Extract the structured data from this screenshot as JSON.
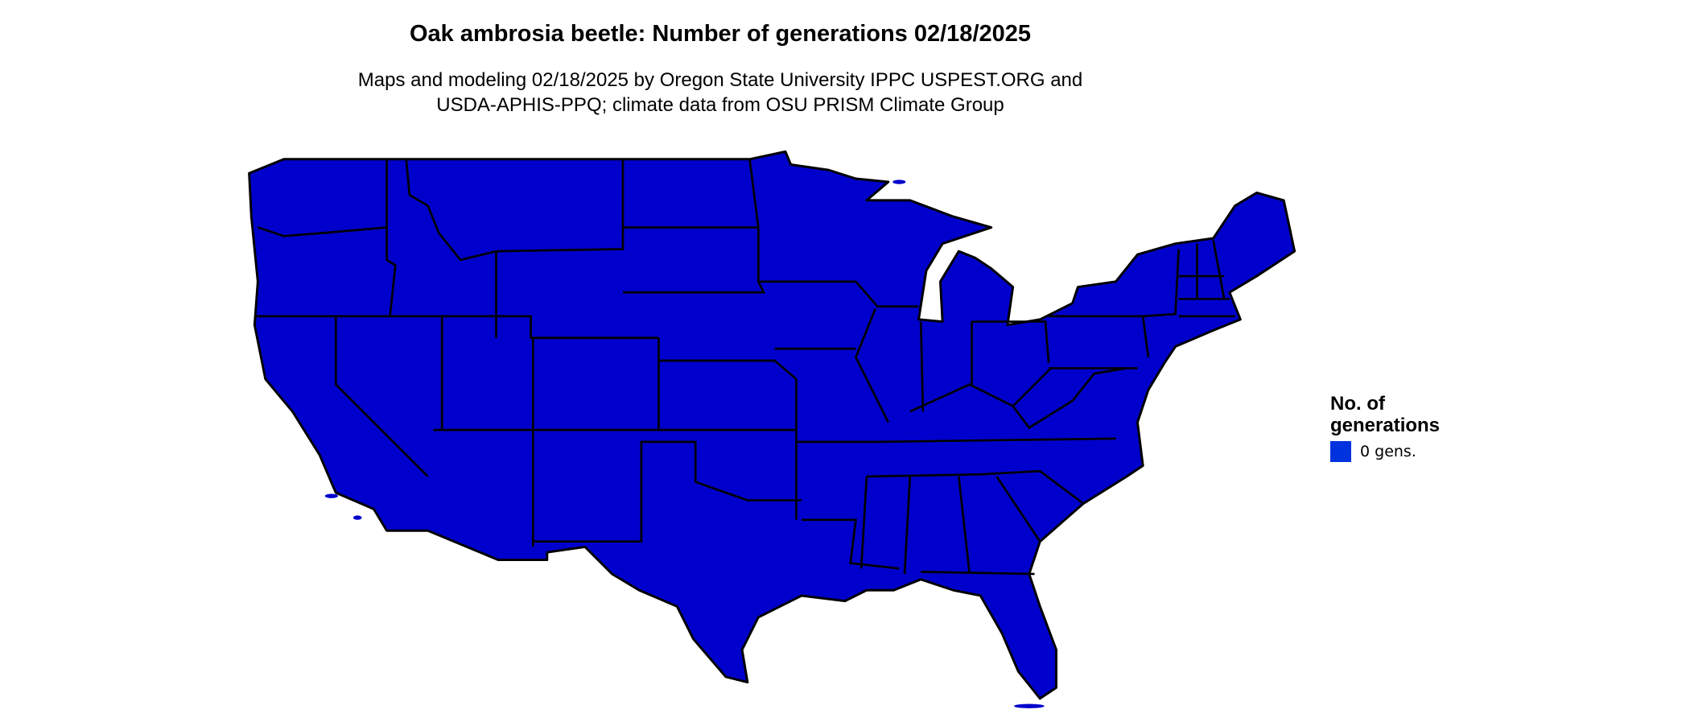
{
  "title": "Oak ambrosia beetle: Number of generations 02/18/2025",
  "subtitle_lines": [
    "Maps and modeling 02/18/2025 by Oregon State University IPPC USPEST.ORG and",
    "USDA-APHIS-PPQ; climate data from OSU PRISM Climate Group"
  ],
  "chart_data": {
    "type": "map",
    "region": "Contiguous United States",
    "legend": {
      "title": "No. of generations",
      "title_lines": [
        "No. of",
        "generations"
      ],
      "placement": "right",
      "entries": [
        {
          "label": "0 gens.",
          "color": "#0033dd"
        }
      ]
    },
    "fill_color": "#0000cc",
    "border_color": "#000000"
  }
}
